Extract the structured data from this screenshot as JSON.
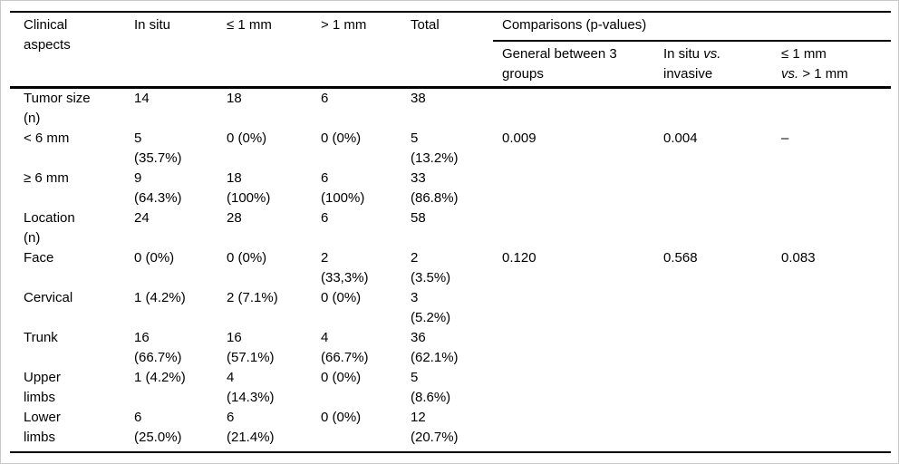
{
  "colors": {
    "background": "#ffffff",
    "text": "#000000",
    "rule": "#000000",
    "frame_border": "#c9c9c9"
  },
  "table": {
    "header": {
      "clinical_aspects": "Clinical\naspects",
      "columns": [
        "In situ",
        "≤ 1 mm",
        "> 1 mm",
        "Total"
      ],
      "comparisons": {
        "title": "Comparisons (p-values)",
        "sub": [
          {
            "text": "General between 3\ngroups"
          },
          {
            "pre": "In situ ",
            "italic": "vs.",
            "line2": "invasive"
          },
          {
            "line1": "≤ 1 mm",
            "italic": "vs.",
            "post": " > 1 mm"
          }
        ]
      }
    },
    "rows": [
      {
        "cells": [
          "Tumor size\n(n)",
          "14",
          "18",
          "6",
          "38",
          "",
          "",
          ""
        ]
      },
      {
        "cells": [
          "< 6 mm",
          "5\n(35.7%)",
          "0 (0%)",
          "0 (0%)",
          "5\n(13.2%)",
          "0.009",
          "0.004",
          "–"
        ]
      },
      {
        "cells": [
          "≥ 6 mm",
          "9\n(64.3%)",
          "18\n(100%)",
          "6\n(100%)",
          "33\n(86.8%)",
          "",
          "",
          ""
        ]
      },
      {
        "cells": [
          "Location\n(n)",
          "24",
          "28",
          "6",
          "58",
          "",
          "",
          ""
        ]
      },
      {
        "cells": [
          "Face",
          "0 (0%)",
          "0 (0%)",
          "2\n(33,3%)",
          "2\n(3.5%)",
          "0.120",
          "0.568",
          "0.083"
        ]
      },
      {
        "cells": [
          "Cervical",
          "1 (4.2%)",
          "2 (7.1%)",
          "0 (0%)",
          "3\n(5.2%)",
          "",
          "",
          ""
        ]
      },
      {
        "cells": [
          "Trunk",
          "16\n(66.7%)",
          "16\n(57.1%)",
          "4\n(66.7%)",
          "36\n(62.1%)",
          "",
          "",
          ""
        ]
      },
      {
        "cells": [
          "Upper\nlimbs",
          "1 (4.2%)",
          "4\n(14.3%)",
          "0 (0%)",
          "5\n(8.6%)",
          "",
          "",
          ""
        ]
      },
      {
        "cells": [
          "Lower\nlimbs",
          "6\n(25.0%)",
          "6\n(21.4%)",
          "0 (0%)",
          "12\n(20.7%)",
          "",
          "",
          ""
        ]
      }
    ]
  }
}
